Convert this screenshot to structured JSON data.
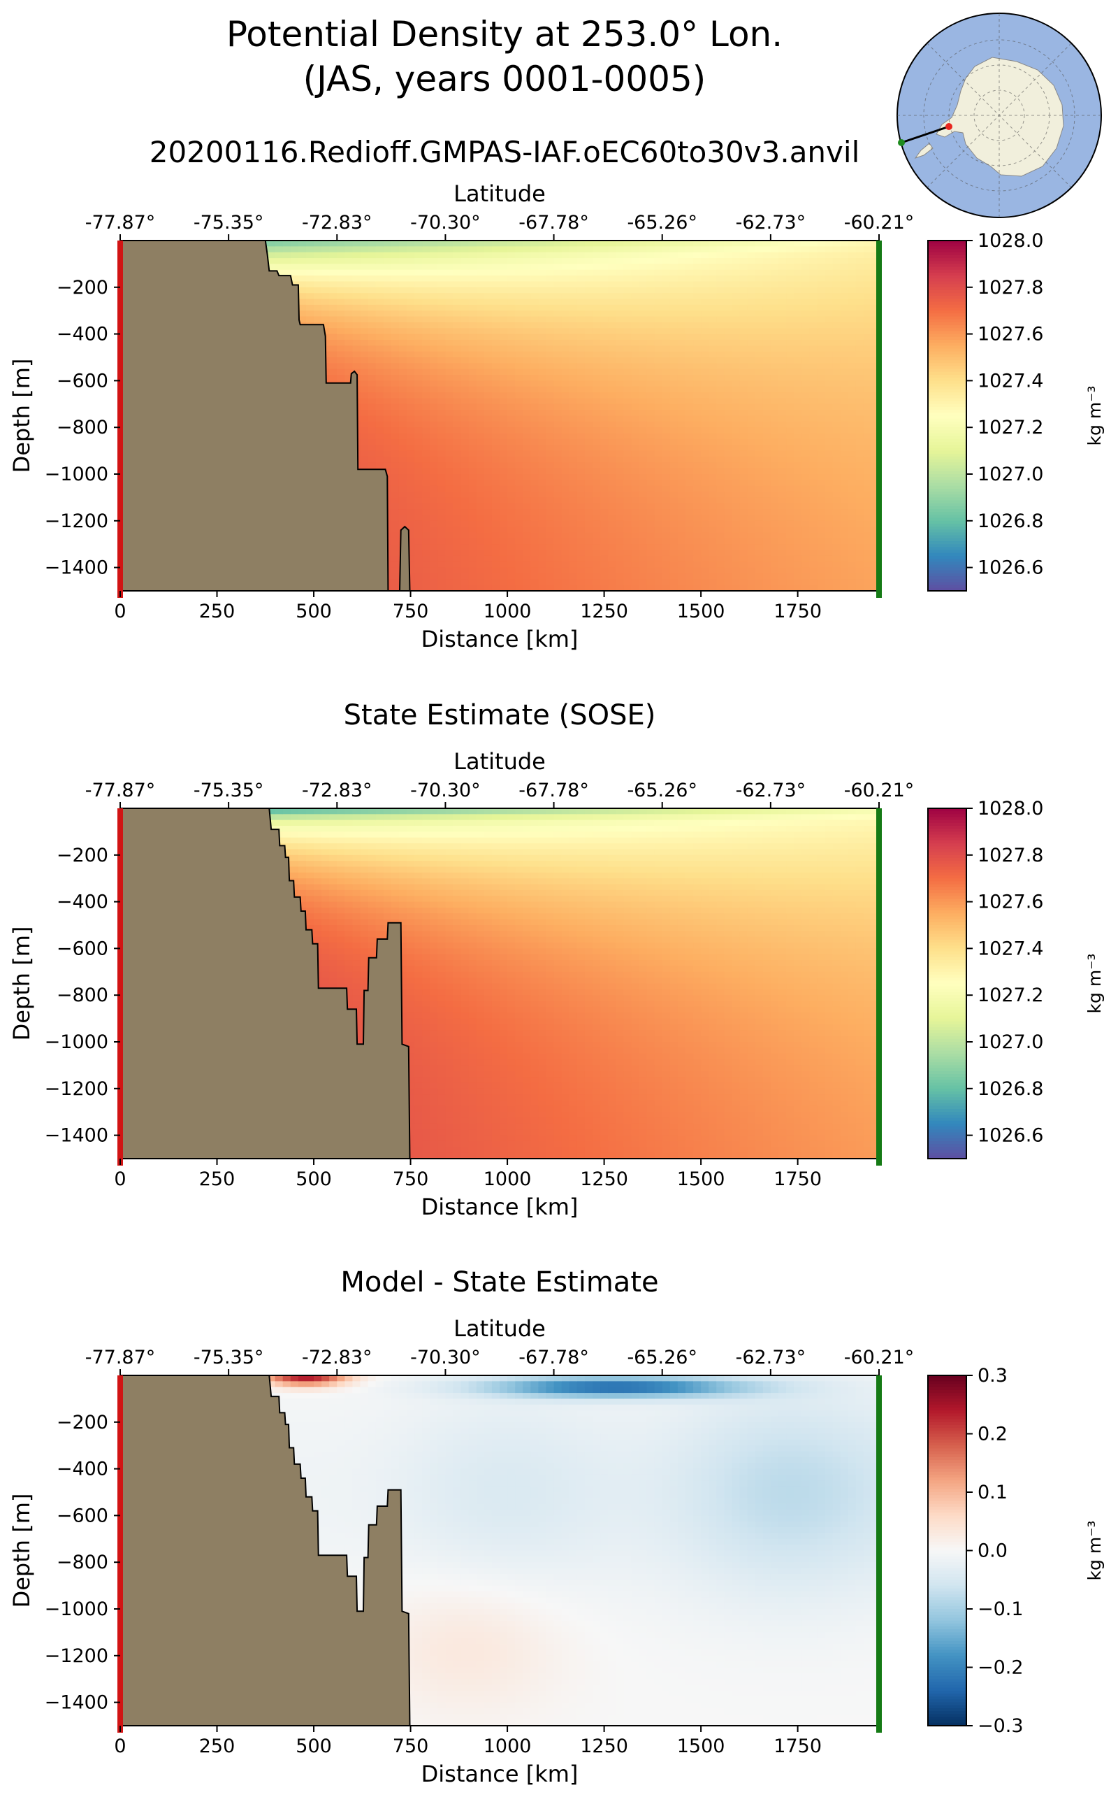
{
  "figure": {
    "title_line1": "Potential Density at 253.0° Lon.",
    "title_line2": "(JAS, years 0001-0005)",
    "run_name": "20200116.Redioff.GMPAS-IAF.oEC60to30v3.anvil"
  },
  "inset_map": {
    "description": "Antarctic polar stereographic map with transect",
    "colors": {
      "ocean": "#9ab6e2",
      "land": "#f1efdc",
      "start_marker": "#e8261e",
      "end_marker": "#1e8b1e"
    }
  },
  "colors": {
    "land_fill": "#8e7f63",
    "start_edge": "#d11414",
    "end_edge": "#157a15"
  },
  "chart_data": [
    {
      "type": "heatmap",
      "title": "",
      "xlabel": "Distance [km]",
      "ylabel": "Depth [m]",
      "top_axis_label": "Latitude",
      "xlim": [
        0,
        1960
      ],
      "ylim": [
        -1500,
        0
      ],
      "x_ticks": [
        0,
        250,
        500,
        750,
        1000,
        1250,
        1500,
        1750
      ],
      "x_tick_labels": [
        "0",
        "250",
        "500",
        "750",
        "1000",
        "1250",
        "1500",
        "1750"
      ],
      "y_ticks": [
        -200,
        -400,
        -600,
        -800,
        -1000,
        -1200,
        -1400
      ],
      "y_tick_labels": [
        "−200",
        "−400",
        "−600",
        "−800",
        "−1000",
        "−1200",
        "−1400"
      ],
      "top_ticks_km": [
        0,
        280,
        560,
        840,
        1120,
        1400,
        1680,
        1960
      ],
      "top_tick_labels": [
        "-77.87°",
        "-75.35°",
        "-72.83°",
        "-70.30°",
        "-67.78°",
        "-65.26°",
        "-62.73°",
        "-60.21°"
      ],
      "colormap": "Spectral_r",
      "clim": [
        1026.5,
        1028.0
      ],
      "colorbar_ticks": [
        1026.6,
        1026.8,
        1027.0,
        1027.2,
        1027.4,
        1027.6,
        1027.8,
        1028.0
      ],
      "colorbar_tick_labels": [
        "1026.6",
        "1026.8",
        "1027.0",
        "1027.2",
        "1027.4",
        "1027.6",
        "1027.8",
        "1028.0"
      ],
      "colorbar_label": "kg m⁻³",
      "field_model": "model",
      "bathymetry": [
        [
          0,
          -1500
        ],
        [
          0,
          0
        ],
        [
          375,
          0
        ],
        [
          380,
          -60
        ],
        [
          385,
          -130
        ],
        [
          405,
          -130
        ],
        [
          410,
          -150
        ],
        [
          440,
          -150
        ],
        [
          445,
          -190
        ],
        [
          460,
          -190
        ],
        [
          462,
          -340
        ],
        [
          465,
          -360
        ],
        [
          525,
          -360
        ],
        [
          530,
          -410
        ],
        [
          532,
          -610
        ],
        [
          595,
          -610
        ],
        [
          597,
          -570
        ],
        [
          605,
          -560
        ],
        [
          612,
          -575
        ],
        [
          614,
          -980
        ],
        [
          685,
          -980
        ],
        [
          690,
          -1010
        ],
        [
          692,
          -1500
        ],
        [
          722,
          -1500
        ],
        [
          725,
          -1240
        ],
        [
          735,
          -1225
        ],
        [
          745,
          -1240
        ],
        [
          748,
          -1500
        ]
      ]
    },
    {
      "type": "heatmap",
      "title": "State Estimate (SOSE)",
      "xlabel": "Distance [km]",
      "ylabel": "Depth [m]",
      "top_axis_label": "Latitude",
      "xlim": [
        0,
        1960
      ],
      "ylim": [
        -1500,
        0
      ],
      "x_ticks": [
        0,
        250,
        500,
        750,
        1000,
        1250,
        1500,
        1750
      ],
      "x_tick_labels": [
        "0",
        "250",
        "500",
        "750",
        "1000",
        "1250",
        "1500",
        "1750"
      ],
      "y_ticks": [
        -200,
        -400,
        -600,
        -800,
        -1000,
        -1200,
        -1400
      ],
      "y_tick_labels": [
        "−200",
        "−400",
        "−600",
        "−800",
        "−1000",
        "−1200",
        "−1400"
      ],
      "top_ticks_km": [
        0,
        280,
        560,
        840,
        1120,
        1400,
        1680,
        1960
      ],
      "top_tick_labels": [
        "-77.87°",
        "-75.35°",
        "-72.83°",
        "-70.30°",
        "-67.78°",
        "-65.26°",
        "-62.73°",
        "-60.21°"
      ],
      "colormap": "Spectral_r",
      "clim": [
        1026.5,
        1028.0
      ],
      "colorbar_ticks": [
        1026.6,
        1026.8,
        1027.0,
        1027.2,
        1027.4,
        1027.6,
        1027.8,
        1028.0
      ],
      "colorbar_tick_labels": [
        "1026.6",
        "1026.8",
        "1027.0",
        "1027.2",
        "1027.4",
        "1027.6",
        "1027.8",
        "1028.0"
      ],
      "colorbar_label": "kg m⁻³",
      "field_model": "sose",
      "bathymetry": [
        [
          0,
          -1500
        ],
        [
          0,
          0
        ],
        [
          385,
          0
        ],
        [
          390,
          -90
        ],
        [
          410,
          -90
        ],
        [
          412,
          -160
        ],
        [
          425,
          -160
        ],
        [
          427,
          -210
        ],
        [
          435,
          -210
        ],
        [
          437,
          -310
        ],
        [
          448,
          -310
        ],
        [
          450,
          -380
        ],
        [
          465,
          -380
        ],
        [
          467,
          -440
        ],
        [
          478,
          -440
        ],
        [
          480,
          -520
        ],
        [
          495,
          -520
        ],
        [
          497,
          -580
        ],
        [
          510,
          -580
        ],
        [
          512,
          -770
        ],
        [
          585,
          -770
        ],
        [
          587,
          -860
        ],
        [
          610,
          -860
        ],
        [
          612,
          -1010
        ],
        [
          628,
          -1010
        ],
        [
          630,
          -780
        ],
        [
          640,
          -780
        ],
        [
          642,
          -640
        ],
        [
          662,
          -640
        ],
        [
          664,
          -560
        ],
        [
          690,
          -560
        ],
        [
          692,
          -490
        ],
        [
          725,
          -490
        ],
        [
          728,
          -1010
        ],
        [
          745,
          -1020
        ],
        [
          748,
          -1500
        ]
      ]
    },
    {
      "type": "heatmap",
      "title": "Model - State Estimate",
      "xlabel": "Distance [km]",
      "ylabel": "Depth [m]",
      "top_axis_label": "Latitude",
      "xlim": [
        0,
        1960
      ],
      "ylim": [
        -1500,
        0
      ],
      "x_ticks": [
        0,
        250,
        500,
        750,
        1000,
        1250,
        1500,
        1750
      ],
      "x_tick_labels": [
        "0",
        "250",
        "500",
        "750",
        "1000",
        "1250",
        "1500",
        "1750"
      ],
      "y_ticks": [
        -200,
        -400,
        -600,
        -800,
        -1000,
        -1200,
        -1400
      ],
      "y_tick_labels": [
        "−200",
        "−400",
        "−600",
        "−800",
        "−1000",
        "−1200",
        "−1400"
      ],
      "top_ticks_km": [
        0,
        280,
        560,
        840,
        1120,
        1400,
        1680,
        1960
      ],
      "top_tick_labels": [
        "-77.87°",
        "-75.35°",
        "-72.83°",
        "-70.30°",
        "-67.78°",
        "-65.26°",
        "-62.73°",
        "-60.21°"
      ],
      "colormap": "RdBu_r",
      "clim": [
        -0.3,
        0.3
      ],
      "colorbar_ticks": [
        -0.3,
        -0.2,
        -0.1,
        0.0,
        0.1,
        0.2,
        0.3
      ],
      "colorbar_tick_labels": [
        "−0.3",
        "−0.2",
        "−0.1",
        "0.0",
        "0.1",
        "0.2",
        "0.3"
      ],
      "colorbar_label": "kg m⁻³",
      "field_model": "diff",
      "bathymetry": [
        [
          0,
          -1500
        ],
        [
          0,
          0
        ],
        [
          385,
          0
        ],
        [
          390,
          -90
        ],
        [
          410,
          -90
        ],
        [
          412,
          -160
        ],
        [
          425,
          -160
        ],
        [
          427,
          -210
        ],
        [
          435,
          -210
        ],
        [
          437,
          -310
        ],
        [
          448,
          -310
        ],
        [
          450,
          -380
        ],
        [
          465,
          -380
        ],
        [
          467,
          -440
        ],
        [
          478,
          -440
        ],
        [
          480,
          -520
        ],
        [
          495,
          -520
        ],
        [
          497,
          -580
        ],
        [
          510,
          -580
        ],
        [
          512,
          -770
        ],
        [
          585,
          -770
        ],
        [
          587,
          -860
        ],
        [
          610,
          -860
        ],
        [
          612,
          -1010
        ],
        [
          628,
          -1010
        ],
        [
          630,
          -780
        ],
        [
          640,
          -780
        ],
        [
          642,
          -640
        ],
        [
          662,
          -640
        ],
        [
          664,
          -560
        ],
        [
          690,
          -560
        ],
        [
          692,
          -490
        ],
        [
          725,
          -490
        ],
        [
          728,
          -1010
        ],
        [
          745,
          -1020
        ],
        [
          748,
          -1500
        ]
      ]
    }
  ]
}
